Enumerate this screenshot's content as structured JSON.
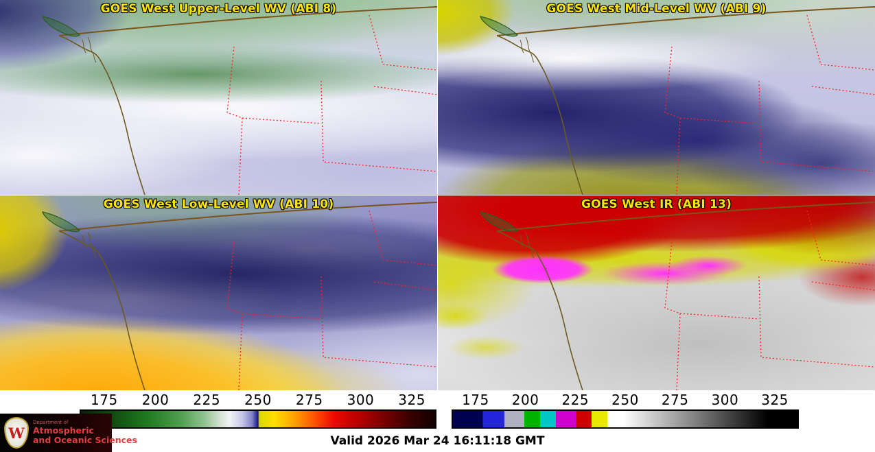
{
  "panels": [
    {
      "title": "GOES West Upper-Level WV (ABI 8)"
    },
    {
      "title": "GOES West Mid-Level WV (ABI 9)"
    },
    {
      "title": "GOES West Low-Level WV (ABI 10)"
    },
    {
      "title": "GOES West IR (ABI 13)"
    }
  ],
  "colorbars": {
    "scale_min": 163,
    "scale_max": 337,
    "wv": {
      "ticks": [
        "175",
        "200",
        "225",
        "250",
        "275",
        "300",
        "325"
      ],
      "stops": [
        [
          163,
          "#0a1f0a"
        ],
        [
          178,
          "#0f4a0f"
        ],
        [
          196,
          "#217a21"
        ],
        [
          212,
          "#4f9e4f"
        ],
        [
          224,
          "#93c493"
        ],
        [
          232,
          "#d8e4d8"
        ],
        [
          236,
          "#f2f2f6"
        ],
        [
          242,
          "#c8c8e8"
        ],
        [
          247,
          "#8484c8"
        ],
        [
          249,
          "#3a3aa0"
        ],
        [
          250,
          "#181878"
        ],
        [
          250.6,
          "#d8d800"
        ],
        [
          258,
          "#ffdf00"
        ],
        [
          268,
          "#ffa000"
        ],
        [
          278,
          "#ff5000"
        ],
        [
          287,
          "#ee0a00"
        ],
        [
          300,
          "#b40000"
        ],
        [
          314,
          "#6e0000"
        ],
        [
          326,
          "#330000"
        ],
        [
          337,
          "#140000"
        ]
      ]
    },
    "ir": {
      "ticks": [
        "175",
        "200",
        "225",
        "250",
        "275",
        "300",
        "325"
      ],
      "stops": [
        [
          163,
          "#000050"
        ],
        [
          178,
          "#000050"
        ],
        [
          178,
          "#2424d8"
        ],
        [
          189,
          "#2424d8"
        ],
        [
          189,
          "#b0b0c0"
        ],
        [
          199,
          "#b0b0c0"
        ],
        [
          199,
          "#00b400"
        ],
        [
          207,
          "#00b400"
        ],
        [
          207,
          "#00c8c8"
        ],
        [
          215,
          "#00c8c8"
        ],
        [
          215,
          "#d000d0"
        ],
        [
          225,
          "#d000d0"
        ],
        [
          225,
          "#d00000"
        ],
        [
          233,
          "#d00000"
        ],
        [
          233,
          "#e8e800"
        ],
        [
          241,
          "#e8e800"
        ],
        [
          241,
          "#ffffff"
        ],
        [
          249,
          "#ffffff"
        ],
        [
          322,
          "#000000"
        ],
        [
          337,
          "#000000"
        ]
      ]
    }
  },
  "footer": {
    "valid_time": "Valid 2026 Mar 24 16:11:18 GMT"
  },
  "logo": {
    "crest_letter": "W",
    "department": "Department of",
    "line1": "Atmospheric",
    "line2": "and Oceanic Sciences"
  },
  "colors": {
    "title_text": "#ffe600",
    "state_boundary": "#ff2020",
    "coastline": "#6b5a20",
    "international_border": "#7a5418",
    "logo_text": "#e04040",
    "logo_background": "#000000",
    "tick_text": "#000000"
  }
}
